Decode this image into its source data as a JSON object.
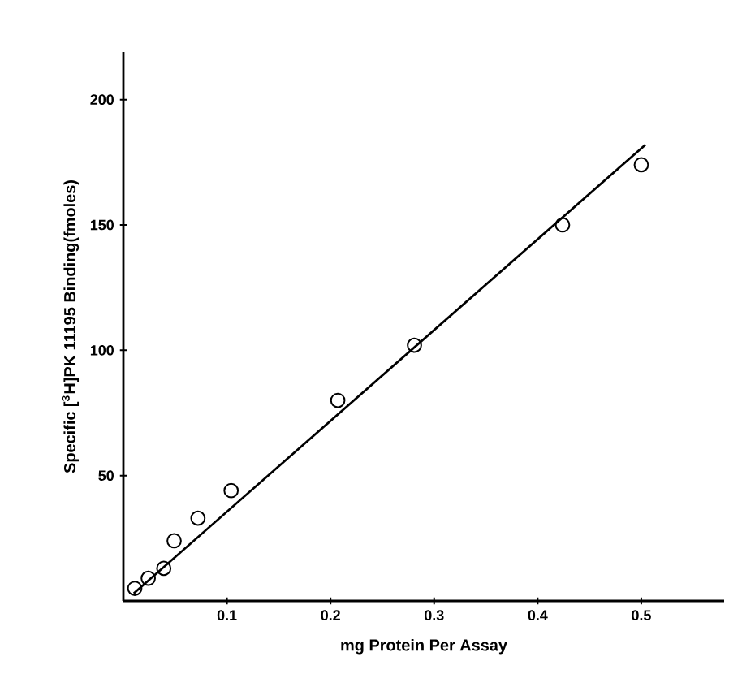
{
  "chart_data": {
    "type": "scatter",
    "xlabel": "mg Protein Per Assay",
    "ylabel": "Specific [$^{3}$H]PK  11195 Binding(fmoles)",
    "xlim": [
      0,
      0.58
    ],
    "ylim": [
      0,
      219
    ],
    "xticks": [
      0.1,
      0.2,
      0.3,
      0.4,
      0.5
    ],
    "yticks": [
      50,
      100,
      150,
      200
    ],
    "grid": false,
    "series": [
      {
        "marker": "circle",
        "color": "#000000",
        "x": [
          0.011,
          0.024,
          0.039,
          0.049,
          0.072,
          0.104,
          0.207,
          0.281,
          0.424,
          0.5
        ],
        "values": [
          5,
          9,
          13,
          24,
          33,
          44,
          80,
          102,
          150,
          174
        ]
      },
      {
        "type": "line",
        "color": "#000000",
        "x": [
          0.01,
          0.504
        ],
        "values": [
          3,
          182
        ]
      }
    ]
  }
}
